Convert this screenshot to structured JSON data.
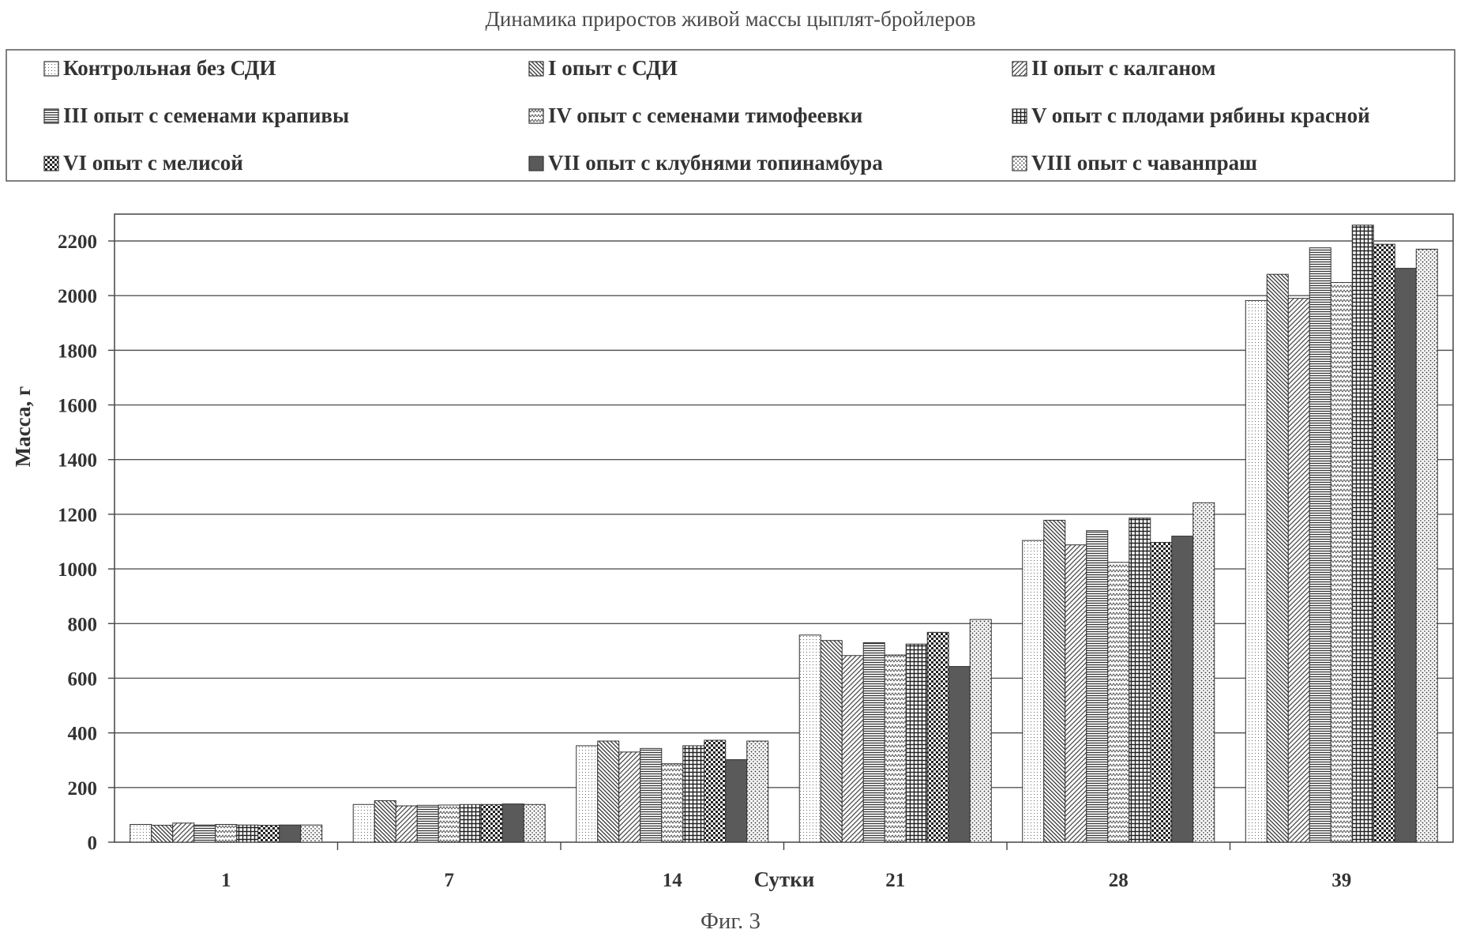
{
  "chart_data": {
    "type": "bar",
    "title": "Динамика приростов живой массы цыплят-бройлеров",
    "xlabel": "Сутки",
    "ylabel": "Масса, г",
    "caption": "Фиг. 3",
    "ylim": [
      0,
      2200
    ],
    "yticks": [
      0,
      200,
      400,
      600,
      800,
      1000,
      1200,
      1400,
      1600,
      1800,
      2000,
      2200
    ],
    "grid": true,
    "legend_position": "top",
    "categories": [
      "1",
      "7",
      "14",
      "21",
      "28",
      "39"
    ],
    "series": [
      {
        "name": "Контрольная без СДИ",
        "pattern": "dots-fine",
        "values": [
          65,
          138,
          353,
          758,
          1104,
          1982
        ]
      },
      {
        "name": "I опыт с СДИ",
        "pattern": "diag-down",
        "values": [
          62,
          152,
          370,
          738,
          1178,
          2078
        ]
      },
      {
        "name": "II опыт с калганом",
        "pattern": "diag-up",
        "values": [
          70,
          133,
          330,
          683,
          1088,
          1990
        ]
      },
      {
        "name": "III опыт с семенами крапивы",
        "pattern": "horizontal",
        "values": [
          63,
          135,
          343,
          730,
          1140,
          2175
        ]
      },
      {
        "name": "IV опыт с семенами тимофеевки",
        "pattern": "zigzag",
        "values": [
          65,
          136,
          287,
          685,
          1024,
          2048
        ]
      },
      {
        "name": "V опыт с плодами рябины красной",
        "pattern": "grid",
        "values": [
          63,
          138,
          353,
          725,
          1186,
          2258
        ]
      },
      {
        "name": "VI опыт с мелисой",
        "pattern": "checker",
        "values": [
          62,
          138,
          373,
          768,
          1097,
          2188
        ]
      },
      {
        "name": "VII опыт с клубнями топинамбура",
        "pattern": "solid-dark",
        "values": [
          63,
          140,
          302,
          643,
          1120,
          2100
        ]
      },
      {
        "name": "VIII опыт с чаванпраш",
        "pattern": "dots-coarse",
        "values": [
          63,
          138,
          370,
          815,
          1242,
          2170
        ]
      }
    ]
  }
}
